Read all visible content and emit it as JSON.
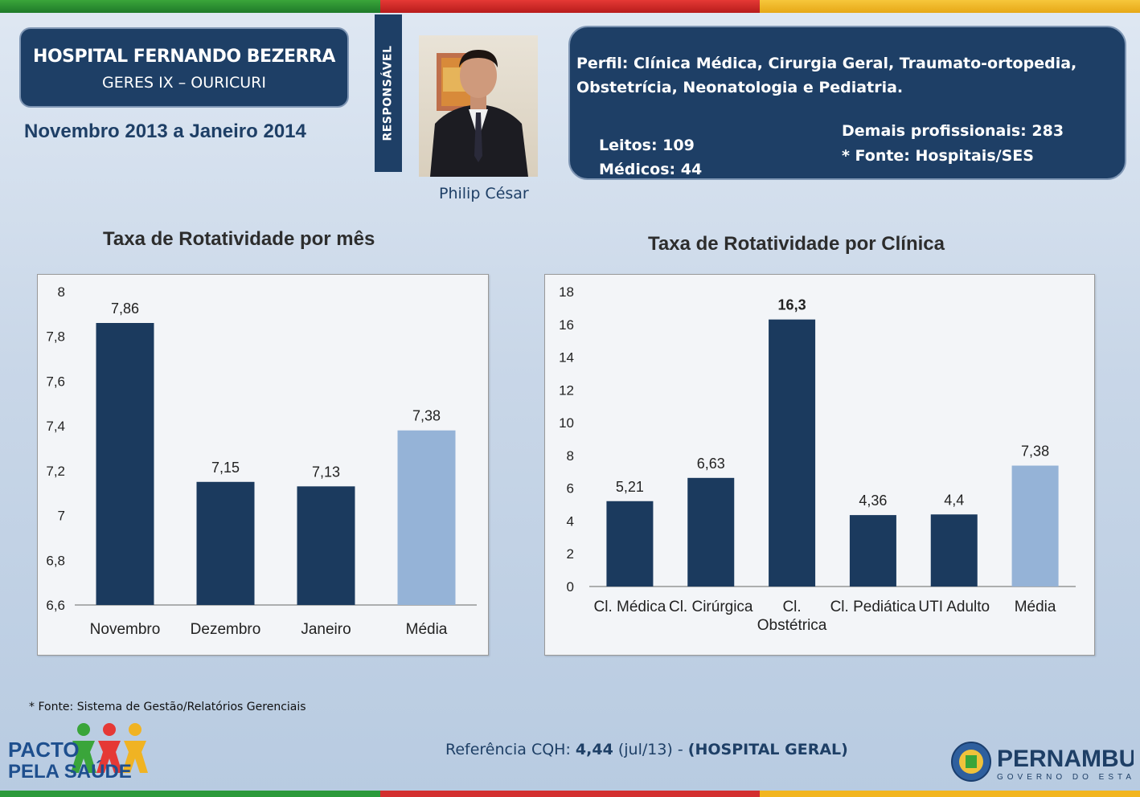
{
  "header": {
    "hospital_name": "HOSPITAL FERNANDO BEZERRA",
    "geres": "GERES IX – OURICURI",
    "period": "Novembro 2013 a Janeiro 2014",
    "responsavel_label": "RESPONSÁVEL",
    "responsavel_name": "Philip César"
  },
  "profile": {
    "perfil_line1": "Perfil: Clínica Médica, Cirurgia Geral, Traumato-ortopedia,",
    "perfil_line2": "Obstetrícia, Neonatologia e Pediatria.",
    "leitos": "Leitos: 109",
    "medicos": "Médicos: 44",
    "demais": "Demais profissionais: 283",
    "fonte": "* Fonte: Hospitais/SES"
  },
  "colors": {
    "dark_bar": "#1b3a5e",
    "light_bar": "#95b3d7",
    "navy": "#1e3f66"
  },
  "chart_data": [
    {
      "type": "bar",
      "title": "Taxa de Rotatividade por mês",
      "categories": [
        "Novembro",
        "Dezembro",
        "Janeiro",
        "Média"
      ],
      "values": [
        7.86,
        7.15,
        7.13,
        7.38
      ],
      "value_labels": [
        "7,86",
        "7,15",
        "7,13",
        "7,38"
      ],
      "highlight": [
        false,
        false,
        false,
        true
      ],
      "ylim": [
        6.6,
        8
      ],
      "yticks": [
        6.6,
        6.8,
        7,
        7.2,
        7.4,
        7.6,
        7.8,
        8
      ],
      "ytick_labels": [
        "6,6",
        "6,8",
        "7",
        "7,2",
        "7,4",
        "7,6",
        "7,8",
        "8"
      ],
      "xlabel": "",
      "ylabel": ""
    },
    {
      "type": "bar",
      "title": "Taxa de Rotatividade por Clínica",
      "categories": [
        "Cl. Médica",
        "Cl. Cirúrgica",
        "Cl. Obstétrica",
        "Cl. Pediática",
        "UTI Adulto",
        "Média"
      ],
      "category_lines": [
        [
          "Cl. Médica"
        ],
        [
          "Cl. Cirúrgica"
        ],
        [
          "Cl.",
          "Obstétrica"
        ],
        [
          "Cl. Pediática"
        ],
        [
          "UTI Adulto"
        ],
        [
          "Média"
        ]
      ],
      "values": [
        5.21,
        6.63,
        16.3,
        4.36,
        4.4,
        7.38
      ],
      "value_labels": [
        "5,21",
        "6,63",
        "16,3",
        "4,36",
        "4,4",
        "7,38"
      ],
      "highlight": [
        false,
        false,
        false,
        false,
        false,
        true
      ],
      "ylim": [
        0,
        18
      ],
      "yticks": [
        0,
        2,
        4,
        6,
        8,
        10,
        12,
        14,
        16,
        18
      ],
      "ytick_labels": [
        "0",
        "2",
        "4",
        "6",
        "8",
        "10",
        "12",
        "14",
        "16",
        "18"
      ],
      "xlabel": "",
      "ylabel": ""
    }
  ],
  "footer": {
    "source": "* Fonte: Sistema de Gestão/Relatórios Gerenciais",
    "ref_label": "Referência CQH:",
    "ref_value": "4,44",
    "ref_date": "(jul/13) -",
    "ref_type": "(HOSPITAL GERAL)",
    "pacto_line1": "PACTO",
    "pacto_line2": "PELA SAÚDE",
    "pe_name": "PERNAMBUCO",
    "pe_sub": "GOVERNO DO ESTADO"
  }
}
